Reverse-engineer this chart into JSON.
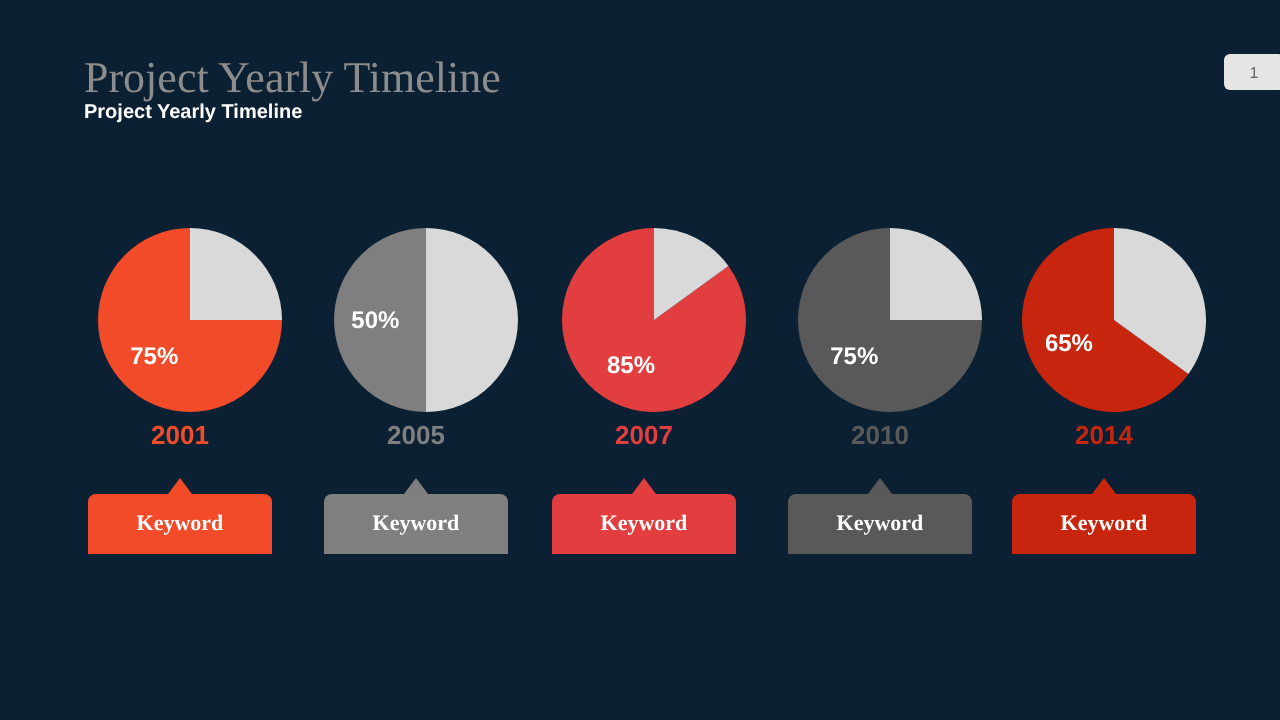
{
  "chart_data": [
    {
      "type": "other",
      "title": "Project Yearly Timeline",
      "subtitle": "Project Yearly Timeline",
      "annotations": [
        "1"
      ]
    },
    {
      "type": "pie",
      "title": "2001",
      "categories": [
        null,
        null
      ],
      "values": [
        75,
        25
      ],
      "colors": [
        "#f24b2a",
        "#d9d9d9"
      ],
      "value_labels": [
        "75%",
        null
      ],
      "annotations": [
        "Keyword"
      ]
    },
    {
      "type": "pie",
      "title": "2005",
      "categories": [
        null,
        null
      ],
      "values": [
        50,
        50
      ],
      "colors": [
        "#7f7f7f",
        "#d9d9d9"
      ],
      "value_labels": [
        "50%",
        null
      ],
      "annotations": [
        "Keyword"
      ]
    },
    {
      "type": "pie",
      "title": "2007",
      "categories": [
        null,
        null
      ],
      "values": [
        85,
        15
      ],
      "colors": [
        "#e23d3f",
        "#d9d9d9"
      ],
      "value_labels": [
        "85%",
        null
      ],
      "annotations": [
        "Keyword"
      ]
    },
    {
      "type": "pie",
      "title": "2010",
      "categories": [
        null,
        null
      ],
      "values": [
        75,
        25
      ],
      "colors": [
        "#595959",
        "#d9d9d9"
      ],
      "value_labels": [
        "75%",
        null
      ],
      "annotations": [
        "Keyword"
      ]
    },
    {
      "type": "pie",
      "title": "2014",
      "categories": [
        null,
        null
      ],
      "values": [
        65,
        35
      ],
      "colors": [
        "#c8250e",
        "#d9d9d9"
      ],
      "value_labels": [
        "65%",
        null
      ],
      "annotations": [
        "Keyword"
      ]
    }
  ]
}
